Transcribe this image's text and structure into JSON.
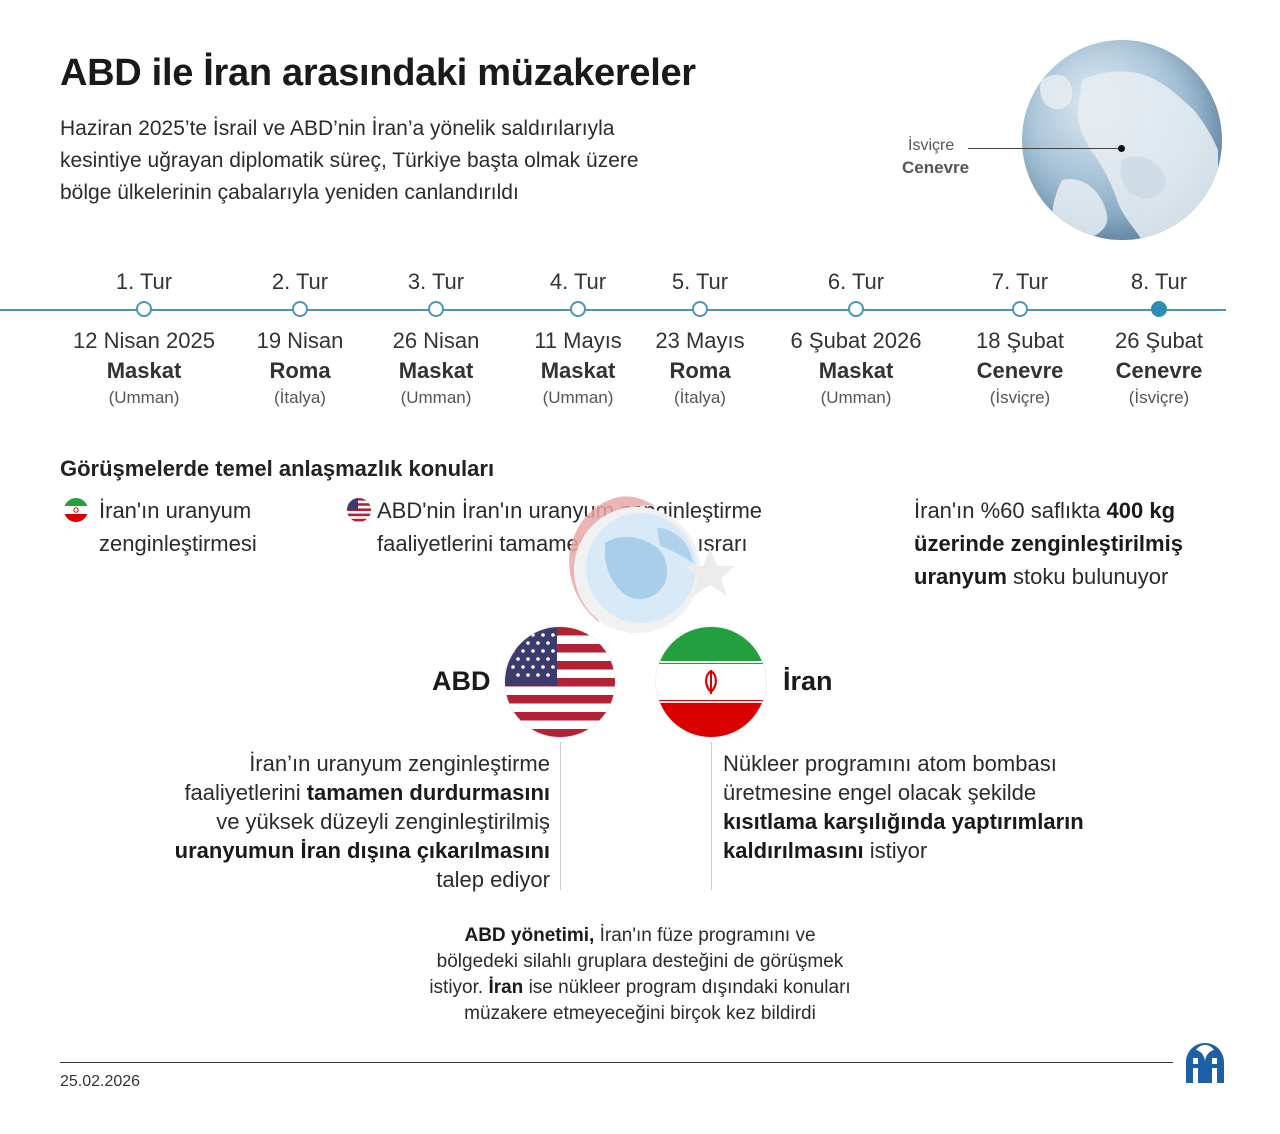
{
  "header": {
    "title": "ABD ile İran arasındaki müzakereler",
    "subtitle_lines": [
      "Haziran 2025’te İsrail ve ABD’nin İran’a yönelik saldırılarıyla",
      "kesintiye uğrayan diplomatik süreç, Türkiye başta olmak üzere",
      "bölge ülkelerinin çabalarıyla yeniden canlandırıldı"
    ]
  },
  "globe": {
    "country": "İsviçre",
    "city": "Cenevre"
  },
  "timeline": {
    "rounds": [
      {
        "label": "1. Tur",
        "date": "12 Nisan 2025",
        "city": "Maskat",
        "country": "(Umman)",
        "active": false
      },
      {
        "label": "2. Tur",
        "date": "19 Nisan",
        "city": "Roma",
        "country": "(İtalya)",
        "active": false
      },
      {
        "label": "3. Tur",
        "date": "26 Nisan",
        "city": "Maskat",
        "country": "(Umman)",
        "active": false
      },
      {
        "label": "4. Tur",
        "date": "11 Mayıs",
        "city": "Maskat",
        "country": "(Umman)",
        "active": false
      },
      {
        "label": "5. Tur",
        "date": "23 Mayıs",
        "city": "Roma",
        "country": "(İtalya)",
        "active": false
      },
      {
        "label": "6. Tur",
        "date": "6 Şubat 2026",
        "city": "Maskat",
        "country": "(Umman)",
        "active": false
      },
      {
        "label": "7. Tur",
        "date": "18 Şubat",
        "city": "Cenevre",
        "country": "(İsviçre)",
        "active": false
      },
      {
        "label": "8. Tur",
        "date": "26 Şubat",
        "city": "Cenevre",
        "country": "(İsviçre)",
        "active": true
      }
    ]
  },
  "disputes": {
    "heading": "Görüşmelerde temel anlaşmazlık konuları",
    "item1": {
      "line1": "İran'ın uranyum",
      "line2": "zenginleştirmesi"
    },
    "item2": {
      "line1": "ABD'nin İran'ın uranyum zenginleştirme",
      "line2": "faaliyetlerini tamamen durdurma ısrarı"
    },
    "item3": {
      "p1": "İran'ın %60 saflıkta ",
      "b1": "400 kg",
      "b2": "üzerinde zenginleştirilmiş",
      "b3": "uranyum",
      "p2": " stoku bulunuyor"
    }
  },
  "parties": {
    "usa": {
      "name": "ABD",
      "demand": {
        "l1": "İran’ın uranyum zenginleştirme",
        "l2a": "faaliyetlerini ",
        "l2b": "tamamen durdurmasını",
        "l3": "ve yüksek düzeyli zenginleştirilmiş",
        "l4": "uranyumun İran dışına çıkarılmasını",
        "l5": "talep ediyor"
      }
    },
    "iran": {
      "name": "İran",
      "demand": {
        "l1": "Nükleer programını atom bombası",
        "l2": "üretmesine engel olacak şekilde",
        "l3": "kısıtlama karşılığında yaptırımların",
        "l4a": "kaldırılmasını",
        "l4b": " istiyor"
      }
    }
  },
  "note": {
    "b1": "ABD yönetimi,",
    "t1": " İran'ın füze programını ve",
    "t2": "bölgedeki silahlı gruplara desteğini de görüşmek",
    "t3a": "istiyor. ",
    "b2": "İran",
    "t3b": " ise nükleer program dışındaki konuları",
    "t4": "müzakere etmeyeceğini birçok kez bildirdi"
  },
  "footer": {
    "date": "25.02.2026",
    "logo_icon": "aa-logo-icon"
  },
  "colors": {
    "accent": "#4a97b2",
    "active_node": "#2f8db2",
    "usa_red": "#b22234",
    "usa_blue": "#3c3b6e",
    "iran_green": "#239f40",
    "iran_red": "#da0000",
    "logo_blue": "#1f5fa8"
  }
}
